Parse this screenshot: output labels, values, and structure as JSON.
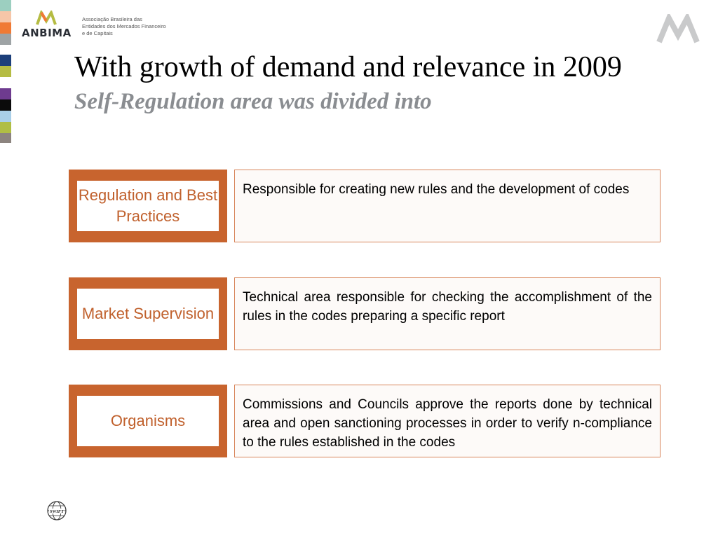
{
  "header": {
    "org_acronym": "ANBIMA",
    "org_tagline": "Associação Brasileira das Entidades dos Mercados Financeiro e de Capitais"
  },
  "slide": {
    "title": "With growth of demand and relevance in 2009",
    "subtitle": "Self-Regulation area was divided into"
  },
  "areas": [
    {
      "name": "Regulation and Best Practices",
      "description": "Responsible for creating new rules and the development of codes"
    },
    {
      "name": "Market Supervision",
      "description": "Technical area responsible for checking the accomplishment of the rules in the codes preparing a specific report"
    },
    {
      "name": "Organisms",
      "description": "Commissions and Councils approve the reports done by technical area and open sanctioning processes in order to verify n-compliance to the rules established in the codes"
    }
  ],
  "footer": {
    "logo_text": "SWIFT"
  },
  "colors": {
    "accent": "#c8642e",
    "accent_text": "#c0602c",
    "subtitle": "#8a8d91",
    "desc_border": "#d8855a",
    "strip": [
      "#9ccfc0",
      "#f6c6a8",
      "#f07a35",
      "#9ea3a5",
      "#1c3f7a",
      "#b5bc43",
      "#6e3b8f",
      "#0b0b0b",
      "#a9cfe8",
      "#b0be44",
      "#8c847f"
    ]
  },
  "icons": {
    "logo_mark": "anbima-m-icon",
    "corner_mark": "anbima-watermark-icon",
    "footer_logo": "swift-globe-icon"
  }
}
